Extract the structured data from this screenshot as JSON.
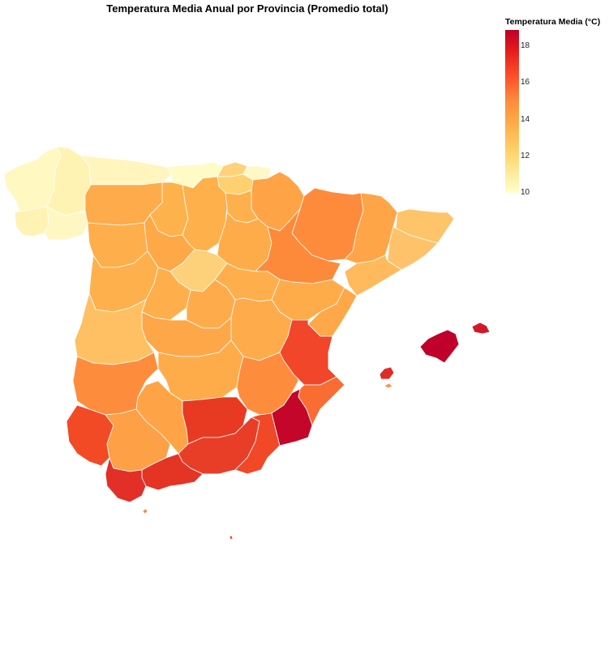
{
  "title": "Temperatura Media Anual por Provincia (Promedio total)",
  "legend": {
    "title": "Temperatura Media (°C)",
    "min": 10,
    "max": 18.9,
    "ticks": [
      {
        "value": 10,
        "label": "10"
      },
      {
        "value": 12,
        "label": "12"
      },
      {
        "value": 14,
        "label": "14"
      },
      {
        "value": 16,
        "label": "16"
      },
      {
        "value": 18,
        "label": "18"
      }
    ],
    "colors": [
      "#ffffcc",
      "#fed976",
      "#feb24c",
      "#fd8d3c",
      "#fc4e2a",
      "#e31a1c",
      "#bd0026"
    ]
  },
  "chart_data": {
    "type": "choropleth",
    "title": "Temperatura Media Anual por Provincia (Promedio total)",
    "legend_title": "Temperatura Media (°C)",
    "scale_range": [
      10,
      18.9
    ],
    "legend_placement": "top-right"
  },
  "regions": [
    {
      "value": 10.6,
      "color": "#fff8c0"
    },
    {
      "value": 10.8,
      "color": "#fff3b4"
    },
    {
      "value": 10.8,
      "color": "#fff3b4"
    },
    {
      "value": 10.4,
      "color": "#fff7c2"
    },
    {
      "value": 10.5,
      "color": "#fff5bd"
    },
    {
      "value": 10.2,
      "color": "#fffbc6"
    },
    {
      "value": 12.7,
      "color": "#fed27b"
    },
    {
      "value": 10.3,
      "color": "#fff8c4"
    },
    {
      "value": 12.8,
      "color": "#fed070"
    },
    {
      "value": 14.9,
      "color": "#fea447"
    },
    {
      "value": 14.5,
      "color": "#feab4b"
    },
    {
      "value": 14.0,
      "color": "#feb24c"
    },
    {
      "value": 13.9,
      "color": "#feb04b"
    },
    {
      "value": 14.0,
      "color": "#feb04c"
    },
    {
      "value": 14.1,
      "color": "#feae4a"
    },
    {
      "value": 14.6,
      "color": "#fea848"
    },
    {
      "value": 14.3,
      "color": "#feac4a"
    },
    {
      "value": 12.8,
      "color": "#fdd07a"
    },
    {
      "value": 14.0,
      "color": "#feb04c"
    },
    {
      "value": 14.2,
      "color": "#feaf4b"
    },
    {
      "value": 16.0,
      "color": "#fd8b3b"
    },
    {
      "value": 16.1,
      "color": "#fc8a3a"
    },
    {
      "value": 14.3,
      "color": "#feac4a"
    },
    {
      "value": 14.8,
      "color": "#fea548"
    },
    {
      "value": 13.2,
      "color": "#fec46a"
    },
    {
      "value": 13.2,
      "color": "#fec36a"
    },
    {
      "value": 13.5,
      "color": "#feba5c"
    },
    {
      "value": 14.2,
      "color": "#feac4b"
    },
    {
      "value": 14.2,
      "color": "#feaf4b"
    },
    {
      "value": 14.5,
      "color": "#feab4b"
    },
    {
      "value": 14.7,
      "color": "#fea749"
    },
    {
      "value": 13.4,
      "color": "#fec062"
    },
    {
      "value": 14.3,
      "color": "#feac4a"
    },
    {
      "value": 16.0,
      "color": "#fd8d3c"
    },
    {
      "value": 14.7,
      "color": "#fea849"
    },
    {
      "value": 17.0,
      "color": "#f1462a"
    },
    {
      "value": 16.5,
      "color": "#f96d33"
    },
    {
      "value": 16.0,
      "color": "#fd8d3c"
    },
    {
      "value": 17.1,
      "color": "#f34a26"
    },
    {
      "value": 15.0,
      "color": "#fea046"
    },
    {
      "value": 14.8,
      "color": "#fea447"
    },
    {
      "value": 17.3,
      "color": "#e83a22"
    },
    {
      "value": 17.4,
      "color": "#e83e28"
    },
    {
      "value": 17.0,
      "color": "#f14827"
    },
    {
      "value": 17.3,
      "color": "#e43423"
    },
    {
      "value": 17.5,
      "color": "#e23028"
    },
    {
      "value": 18.8,
      "color": "#c4062a"
    },
    {
      "value": 18.9,
      "color": "#c0002a"
    },
    {
      "value": 18.2,
      "color": "#cf1a2a"
    },
    {
      "value": 17.8,
      "color": "#de2c27"
    },
    {
      "value": 15.9,
      "color": "#fd9443"
    },
    {
      "value": 16.2,
      "color": "#fa8a38"
    },
    {
      "value": 17.3,
      "color": "#f04a2a"
    },
    {
      "value": 16.2,
      "color": "#fc8a3a"
    },
    {
      "value": 17.3,
      "color": "#f04a2a"
    }
  ]
}
